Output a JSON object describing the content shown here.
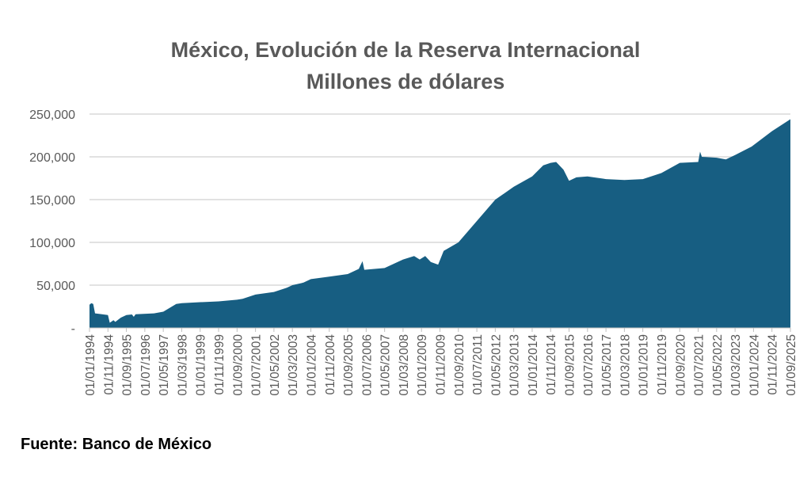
{
  "chart_data": {
    "type": "area",
    "title": "México, Evolución de la Reserva Internacional",
    "subtitle": "Millones de dólares",
    "xlabel": "",
    "ylabel": "",
    "ylim": [
      0,
      250000
    ],
    "yticks": [
      0,
      50000,
      100000,
      150000,
      200000,
      250000
    ],
    "ytick_labels": [
      "-",
      "50,000",
      "100,000",
      "150,000",
      "200,000",
      "250,000"
    ],
    "grid": true,
    "legend": "none",
    "color": "#175e82",
    "xlim": [
      "1994-01",
      "2025-09"
    ],
    "xtick_labels": [
      "01/01/1994",
      "01/11/1994",
      "01/09/1995",
      "01/07/1996",
      "01/05/1997",
      "01/03/1998",
      "01/01/1999",
      "01/11/1999",
      "01/09/2000",
      "01/07/2001",
      "01/05/2002",
      "01/03/2003",
      "01/01/2004",
      "01/11/2004",
      "01/09/2005",
      "01/07/2006",
      "01/05/2007",
      "01/03/2008",
      "01/01/2009",
      "01/11/2009",
      "01/09/2010",
      "01/07/2011",
      "01/05/2012",
      "01/03/2013",
      "01/01/2014",
      "01/11/2014",
      "01/09/2015",
      "01/07/2016",
      "01/05/2017",
      "01/03/2018",
      "01/01/2019",
      "01/11/2019",
      "01/09/2020",
      "01/07/2021",
      "01/05/2022",
      "01/03/2023",
      "01/01/2024",
      "01/11/2024",
      "01/09/2025"
    ],
    "series": [
      {
        "name": "Reserva Internacional",
        "x": [
          "1994-01",
          "1994-02",
          "1994-03",
          "1994-04",
          "1994-11",
          "1994-12",
          "1995-02",
          "1995-03",
          "1995-06",
          "1995-09",
          "1995-12",
          "1996-01",
          "1996-02",
          "1996-12",
          "1997-05",
          "1997-12",
          "1998-03",
          "1998-12",
          "1999-11",
          "2000-09",
          "2000-12",
          "2001-07",
          "2002-05",
          "2002-12",
          "2003-03",
          "2003-09",
          "2004-01",
          "2004-11",
          "2005-09",
          "2006-03",
          "2006-05",
          "2006-06",
          "2007-05",
          "2008-03",
          "2008-09",
          "2008-12",
          "2009-03",
          "2009-06",
          "2009-10",
          "2010-01",
          "2010-09",
          "2011-07",
          "2012-05",
          "2013-03",
          "2014-01",
          "2014-07",
          "2014-11",
          "2015-02",
          "2015-06",
          "2015-09",
          "2016-01",
          "2016-07",
          "2017-05",
          "2018-03",
          "2019-01",
          "2019-11",
          "2020-09",
          "2021-07",
          "2021-08",
          "2021-09",
          "2022-05",
          "2022-10",
          "2023-03",
          "2023-12",
          "2024-11",
          "2025-09"
        ],
        "values": [
          27000,
          29000,
          28000,
          17000,
          15000,
          6000,
          9000,
          7000,
          12000,
          15000,
          15700,
          13000,
          16000,
          17000,
          19000,
          28000,
          29000,
          30000,
          31000,
          33000,
          34000,
          39000,
          42000,
          47000,
          50000,
          53000,
          57000,
          60000,
          63000,
          69000,
          78000,
          68000,
          70000,
          80000,
          84000,
          80000,
          84000,
          77000,
          74000,
          90000,
          100000,
          125000,
          150000,
          165000,
          177000,
          190000,
          193000,
          194000,
          185000,
          172000,
          176000,
          177000,
          174000,
          173000,
          174000,
          181000,
          193000,
          194000,
          206000,
          200000,
          199000,
          197000,
          202000,
          212000,
          230000,
          244000
        ]
      }
    ]
  },
  "footer": {
    "source": "Fuente: Banco de México"
  }
}
